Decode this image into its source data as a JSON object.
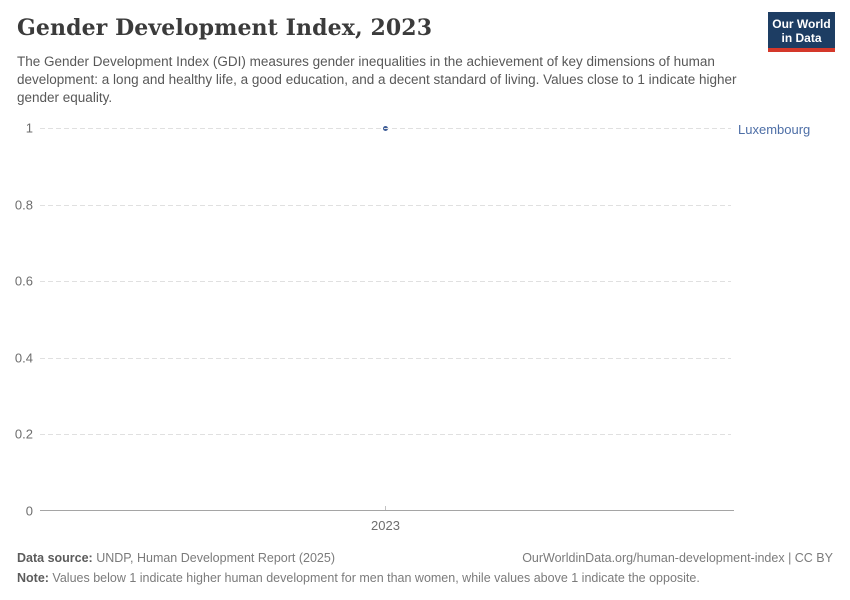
{
  "header": {
    "title": "Gender Development Index, 2023",
    "subtitle": "The Gender Development Index (GDI) measures gender inequalities in the achievement of key dimensions of human development: a long and healthy life, a good education, and a decent standard of living. Values close to 1 indicate higher gender equality.",
    "logo": {
      "line1": "Our World",
      "line2": "in Data",
      "bg_color": "#1d3d63",
      "accent_color": "#d4382a"
    }
  },
  "chart_data": {
    "type": "scatter",
    "title": "Gender Development Index, 2023",
    "x": [
      2023
    ],
    "series": [
      {
        "name": "Luxembourg",
        "values": [
          1.0
        ],
        "color": "#3d5c97"
      }
    ],
    "xlabel": "",
    "ylabel": "",
    "ylim": [
      0,
      1
    ],
    "yticks": [
      0,
      0.2,
      0.4,
      0.6,
      0.8,
      1
    ],
    "xticks": [
      "2023"
    ],
    "grid": "horizontal-dashed",
    "legend_position": "right-entity-label",
    "gridline_color": "#e0e0e0",
    "axis_color": "#a5a5a5"
  },
  "footer": {
    "source_label": "Data source:",
    "source_text": " UNDP, Human Development Report (2025)",
    "attribution": "OurWorldinData.org/human-development-index | CC BY",
    "note_label": "Note:",
    "note_text": " Values below 1 indicate higher human development for men than women, while values above 1 indicate the opposite."
  }
}
